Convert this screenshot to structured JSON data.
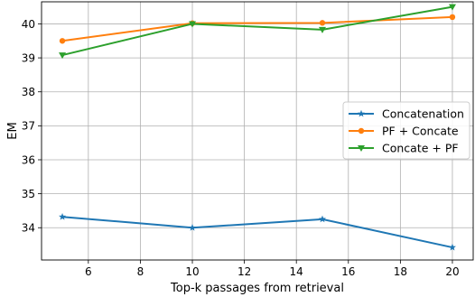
{
  "chart_data": {
    "type": "line",
    "title": "",
    "xlabel": "Top-k passages from retrieval",
    "ylabel": "EM",
    "xlim": [
      4.2,
      20.8
    ],
    "ylim": [
      33.05,
      40.65
    ],
    "xticks": [
      6,
      8,
      10,
      12,
      14,
      16,
      18,
      20
    ],
    "yticks": [
      34,
      35,
      36,
      37,
      38,
      39,
      40
    ],
    "grid": true,
    "legend_position": "center-right",
    "series": [
      {
        "name": "Concatenation",
        "color": "#1f77b4",
        "marker": "star",
        "x": [
          5,
          10,
          15,
          20
        ],
        "y": [
          34.32,
          34.0,
          34.25,
          33.42
        ]
      },
      {
        "name": "PF + Concate",
        "color": "#ff7f0e",
        "marker": "circle",
        "x": [
          5,
          10,
          15,
          20
        ],
        "y": [
          39.5,
          40.02,
          40.03,
          40.2
        ]
      },
      {
        "name": "Concate + PF",
        "color": "#2ca02c",
        "marker": "triangle-down",
        "x": [
          5,
          10,
          15,
          20
        ],
        "y": [
          39.08,
          40.0,
          39.83,
          40.5
        ]
      }
    ]
  }
}
